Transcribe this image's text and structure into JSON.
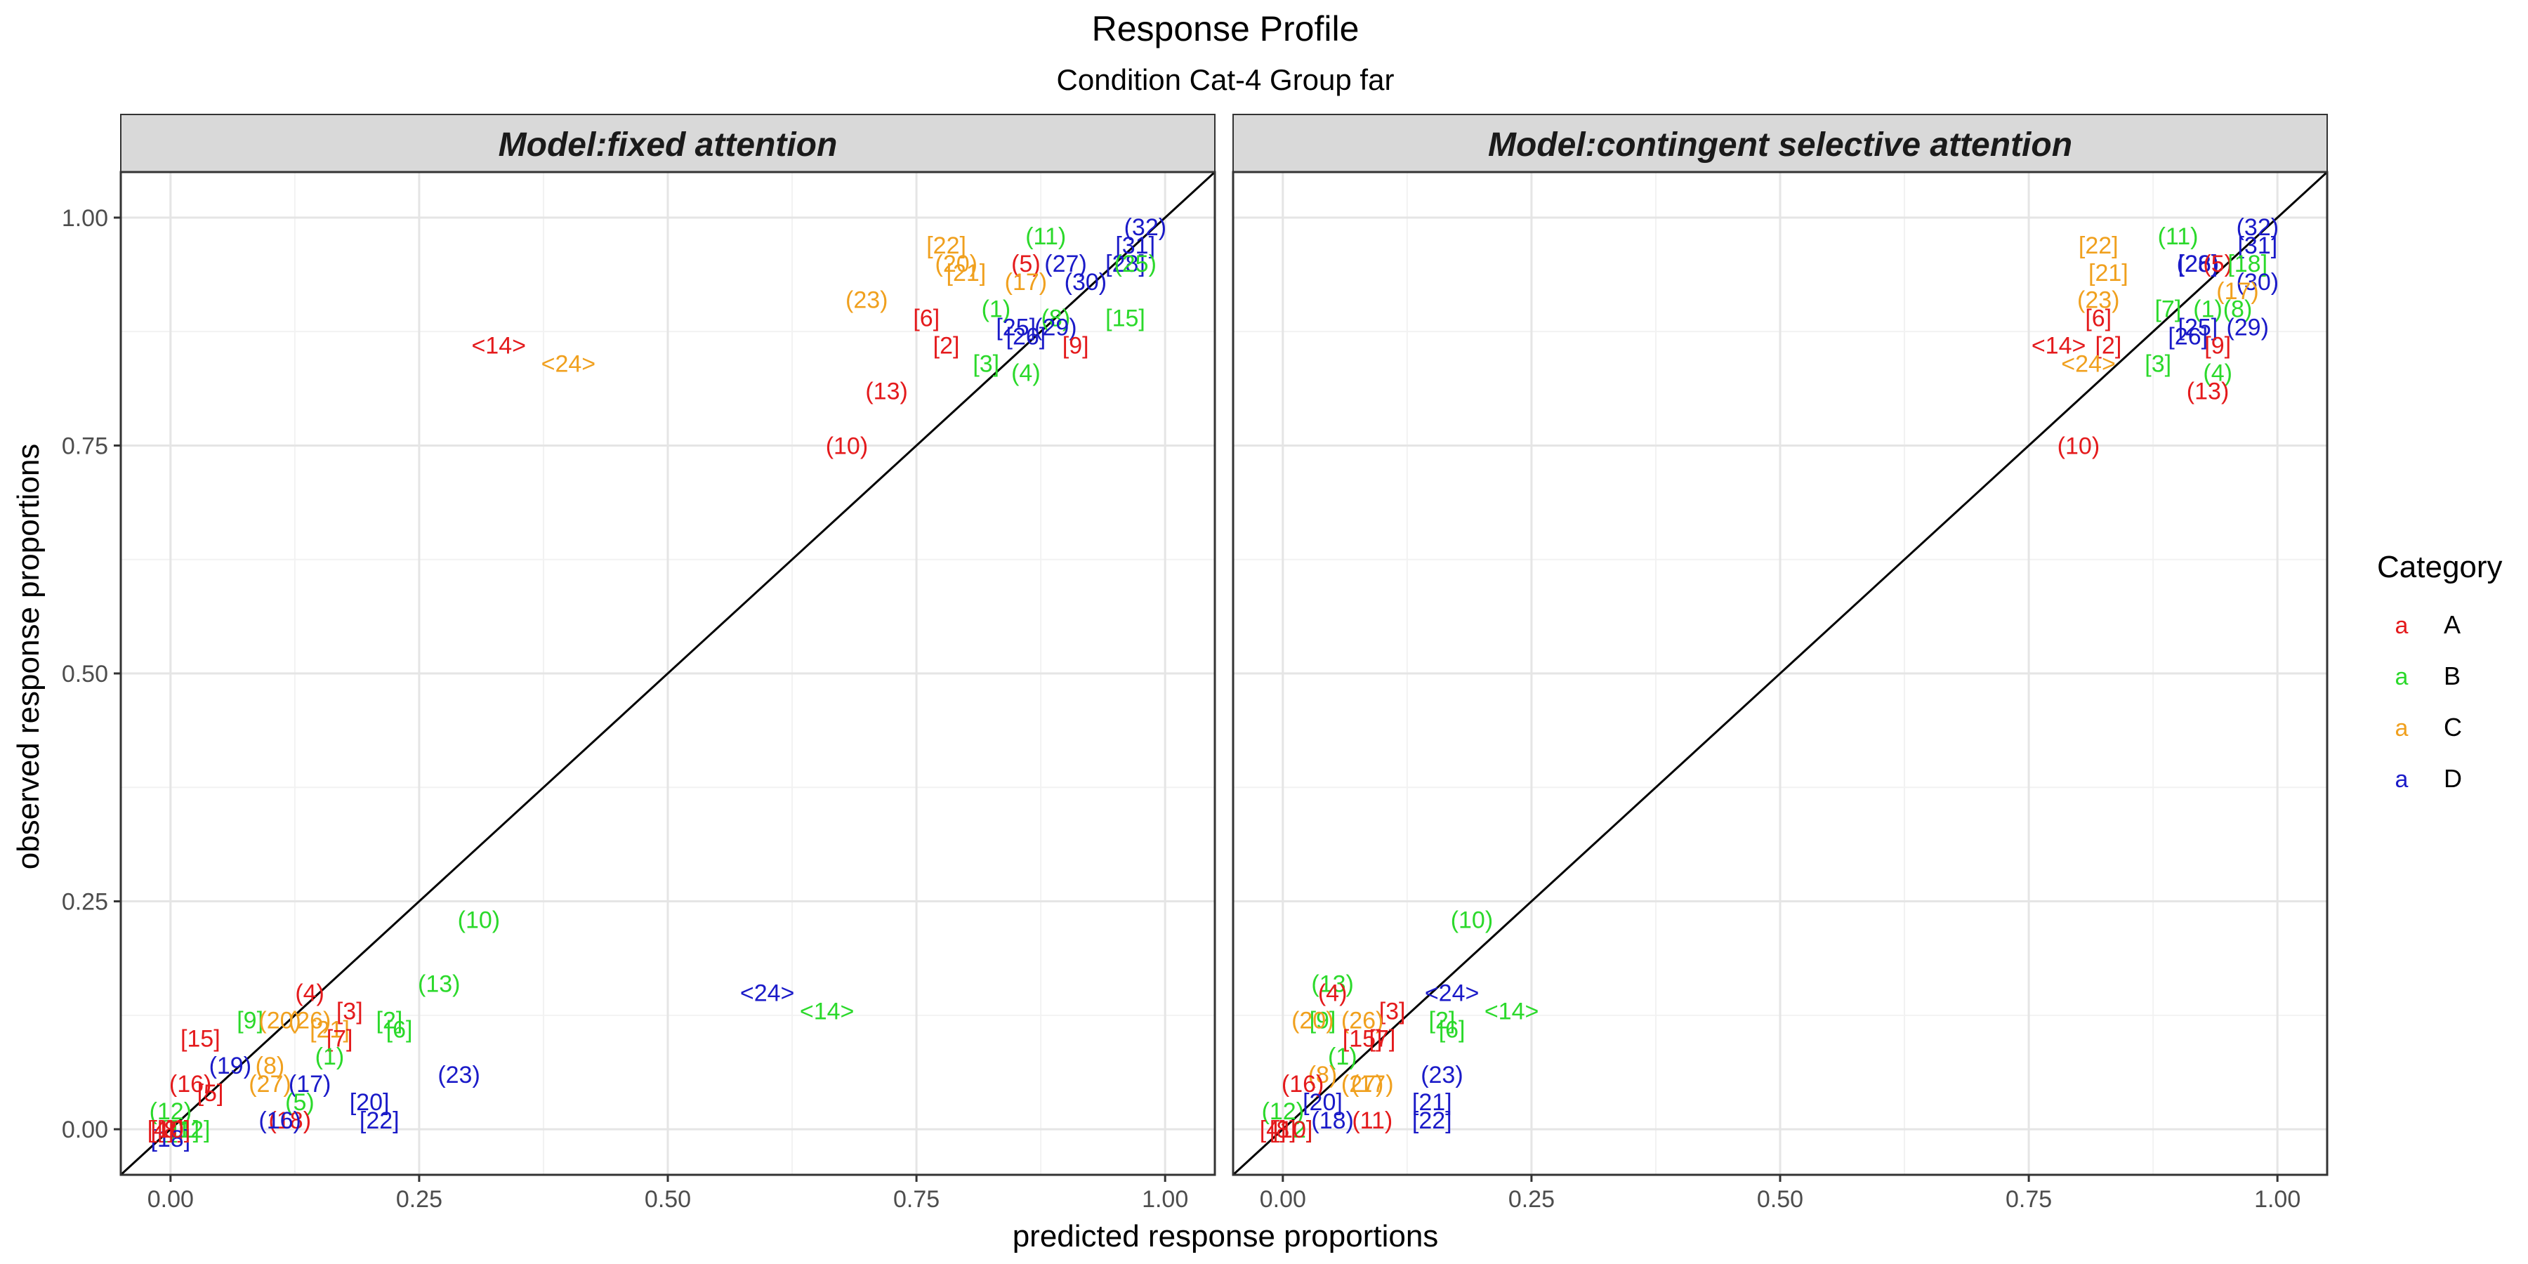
{
  "title": "Response Profile",
  "subtitle": "Condition Cat-4 Group far",
  "xlabel": "predicted response proportions",
  "ylabel": "observed response proportions",
  "legend": {
    "title": "Category",
    "glyph": "a",
    "items": [
      {
        "label": "A",
        "color": "#E41A1C"
      },
      {
        "label": "B",
        "color": "#2BD92B"
      },
      {
        "label": "C",
        "color": "#F0A01E"
      },
      {
        "label": "D",
        "color": "#1A1AC8"
      }
    ]
  },
  "chart_data": {
    "type": "scatter",
    "xlim": [
      -0.05,
      1.05
    ],
    "ylim": [
      -0.05,
      1.05
    ],
    "x_ticks": [
      "0.00",
      "0.25",
      "0.50",
      "0.75",
      "1.00"
    ],
    "y_ticks": [
      "0.00",
      "0.25",
      "0.50",
      "0.75",
      "1.00"
    ],
    "reference_line": "y = x",
    "grid": true,
    "legend_position": "right",
    "panels": [
      {
        "title": "Model:fixed attention",
        "points": [
          {
            "label": "(32)",
            "cat": "D",
            "x": 0.98,
            "y": 0.99
          },
          {
            "label": "(11)",
            "cat": "B",
            "x": 0.88,
            "y": 0.98
          },
          {
            "label": "[31]",
            "cat": "D",
            "x": 0.97,
            "y": 0.97
          },
          {
            "label": "[22]",
            "cat": "C",
            "x": 0.78,
            "y": 0.97
          },
          {
            "label": "(20)",
            "cat": "C",
            "x": 0.79,
            "y": 0.95
          },
          {
            "label": "(5)",
            "cat": "A",
            "x": 0.86,
            "y": 0.95
          },
          {
            "label": "(27)",
            "cat": "D",
            "x": 0.9,
            "y": 0.95
          },
          {
            "label": "[28]",
            "cat": "D",
            "x": 0.96,
            "y": 0.95
          },
          {
            "label": "(25)",
            "cat": "B",
            "x": 0.97,
            "y": 0.95
          },
          {
            "label": "[21]",
            "cat": "C",
            "x": 0.8,
            "y": 0.94
          },
          {
            "label": "(17)",
            "cat": "C",
            "x": 0.86,
            "y": 0.93
          },
          {
            "label": "(30)",
            "cat": "D",
            "x": 0.92,
            "y": 0.93
          },
          {
            "label": "(23)",
            "cat": "C",
            "x": 0.7,
            "y": 0.91
          },
          {
            "label": "(1)",
            "cat": "B",
            "x": 0.83,
            "y": 0.9
          },
          {
            "label": "(8)",
            "cat": "B",
            "x": 0.89,
            "y": 0.89
          },
          {
            "label": "[6]",
            "cat": "A",
            "x": 0.76,
            "y": 0.89
          },
          {
            "label": "[15]",
            "cat": "B",
            "x": 0.96,
            "y": 0.89
          },
          {
            "label": "[25]",
            "cat": "D",
            "x": 0.85,
            "y": 0.88
          },
          {
            "label": "(29)",
            "cat": "D",
            "x": 0.89,
            "y": 0.88
          },
          {
            "label": "[26]",
            "cat": "D",
            "x": 0.86,
            "y": 0.87
          },
          {
            "label": "[2]",
            "cat": "A",
            "x": 0.78,
            "y": 0.86
          },
          {
            "label": "[9]",
            "cat": "A",
            "x": 0.91,
            "y": 0.86
          },
          {
            "label": "<14>",
            "cat": "A",
            "x": 0.33,
            "y": 0.86
          },
          {
            "label": "<24>",
            "cat": "C",
            "x": 0.4,
            "y": 0.84
          },
          {
            "label": "[3]",
            "cat": "B",
            "x": 0.82,
            "y": 0.84
          },
          {
            "label": "(4)",
            "cat": "B",
            "x": 0.86,
            "y": 0.83
          },
          {
            "label": "(13)",
            "cat": "A",
            "x": 0.72,
            "y": 0.81
          },
          {
            "label": "(10)",
            "cat": "A",
            "x": 0.68,
            "y": 0.75
          },
          {
            "label": "(10)",
            "cat": "B",
            "x": 0.31,
            "y": 0.23
          },
          {
            "label": "(13)",
            "cat": "B",
            "x": 0.27,
            "y": 0.16
          },
          {
            "label": "<24>",
            "cat": "D",
            "x": 0.6,
            "y": 0.15
          },
          {
            "label": "(4)",
            "cat": "A",
            "x": 0.14,
            "y": 0.15
          },
          {
            "label": "<14>",
            "cat": "B",
            "x": 0.66,
            "y": 0.13
          },
          {
            "label": "[3]",
            "cat": "A",
            "x": 0.18,
            "y": 0.13
          },
          {
            "label": "[9]",
            "cat": "B",
            "x": 0.08,
            "y": 0.12
          },
          {
            "label": "(20)",
            "cat": "C",
            "x": 0.11,
            "y": 0.12
          },
          {
            "label": "(26)",
            "cat": "C",
            "x": 0.14,
            "y": 0.12
          },
          {
            "label": "[2]",
            "cat": "B",
            "x": 0.22,
            "y": 0.12
          },
          {
            "label": "[21]",
            "cat": "C",
            "x": 0.16,
            "y": 0.11
          },
          {
            "label": "[6]",
            "cat": "B",
            "x": 0.23,
            "y": 0.11
          },
          {
            "label": "[15]",
            "cat": "A",
            "x": 0.03,
            "y": 0.1
          },
          {
            "label": "[7]",
            "cat": "A",
            "x": 0.17,
            "y": 0.1
          },
          {
            "label": "(1)",
            "cat": "B",
            "x": 0.16,
            "y": 0.08
          },
          {
            "label": "(19)",
            "cat": "D",
            "x": 0.06,
            "y": 0.07
          },
          {
            "label": "(8)",
            "cat": "C",
            "x": 0.1,
            "y": 0.07
          },
          {
            "label": "(23)",
            "cat": "D",
            "x": 0.29,
            "y": 0.06
          },
          {
            "label": "(16)",
            "cat": "A",
            "x": 0.02,
            "y": 0.05
          },
          {
            "label": "(27)",
            "cat": "C",
            "x": 0.1,
            "y": 0.05
          },
          {
            "label": "(17)",
            "cat": "D",
            "x": 0.14,
            "y": 0.05
          },
          {
            "label": "[5]",
            "cat": "A",
            "x": 0.04,
            "y": 0.04
          },
          {
            "label": "(5)",
            "cat": "B",
            "x": 0.13,
            "y": 0.03
          },
          {
            "label": "[20]",
            "cat": "D",
            "x": 0.2,
            "y": 0.03
          },
          {
            "label": "(12)",
            "cat": "B",
            "x": 0.0,
            "y": 0.02
          },
          {
            "label": "(18)",
            "cat": "A",
            "x": 0.12,
            "y": 0.01
          },
          {
            "label": "(16)",
            "cat": "D",
            "x": 0.11,
            "y": 0.01
          },
          {
            "label": "[22]",
            "cat": "D",
            "x": 0.21,
            "y": 0.01
          },
          {
            "label": "[11]",
            "cat": "B",
            "x": 0.01,
            "y": 0.0
          },
          {
            "label": "[12]",
            "cat": "B",
            "x": 0.02,
            "y": 0.0
          },
          {
            "label": "[8]",
            "cat": "A",
            "x": 0.0,
            "y": 0.0
          },
          {
            "label": "[18]",
            "cat": "D",
            "x": 0.0,
            "y": -0.01
          },
          {
            "label": "[10]",
            "cat": "A",
            "x": 0.0,
            "y": 0.0
          },
          {
            "label": "[4]",
            "cat": "A",
            "x": -0.01,
            "y": 0.0
          }
        ]
      },
      {
        "title": "Model:contingent selective attention",
        "points": [
          {
            "label": "(32)",
            "cat": "D",
            "x": 0.98,
            "y": 0.99
          },
          {
            "label": "(11)",
            "cat": "B",
            "x": 0.9,
            "y": 0.98
          },
          {
            "label": "[31]",
            "cat": "D",
            "x": 0.98,
            "y": 0.97
          },
          {
            "label": "[22]",
            "cat": "C",
            "x": 0.82,
            "y": 0.97
          },
          {
            "label": "(26)",
            "cat": "D",
            "x": 0.92,
            "y": 0.95
          },
          {
            "label": "[28]",
            "cat": "D",
            "x": 0.92,
            "y": 0.95
          },
          {
            "label": "(5)",
            "cat": "A",
            "x": 0.94,
            "y": 0.95
          },
          {
            "label": "[18]",
            "cat": "B",
            "x": 0.97,
            "y": 0.95
          },
          {
            "label": "(30)",
            "cat": "D",
            "x": 0.98,
            "y": 0.93
          },
          {
            "label": "[21]",
            "cat": "C",
            "x": 0.83,
            "y": 0.94
          },
          {
            "label": "(17)",
            "cat": "C",
            "x": 0.96,
            "y": 0.92
          },
          {
            "label": "(23)",
            "cat": "C",
            "x": 0.82,
            "y": 0.91
          },
          {
            "label": "[7]",
            "cat": "B",
            "x": 0.89,
            "y": 0.9
          },
          {
            "label": "(1)",
            "cat": "B",
            "x": 0.93,
            "y": 0.9
          },
          {
            "label": "(8)",
            "cat": "B",
            "x": 0.96,
            "y": 0.9
          },
          {
            "label": "[6]",
            "cat": "A",
            "x": 0.82,
            "y": 0.89
          },
          {
            "label": "[25]",
            "cat": "D",
            "x": 0.92,
            "y": 0.88
          },
          {
            "label": "(29)",
            "cat": "D",
            "x": 0.97,
            "y": 0.88
          },
          {
            "label": "[26]",
            "cat": "D",
            "x": 0.91,
            "y": 0.87
          },
          {
            "label": "[2]",
            "cat": "A",
            "x": 0.83,
            "y": 0.86
          },
          {
            "label": "[9]",
            "cat": "A",
            "x": 0.94,
            "y": 0.86
          },
          {
            "label": "<14>",
            "cat": "A",
            "x": 0.78,
            "y": 0.86
          },
          {
            "label": "<24>",
            "cat": "C",
            "x": 0.81,
            "y": 0.84
          },
          {
            "label": "[3]",
            "cat": "B",
            "x": 0.88,
            "y": 0.84
          },
          {
            "label": "(4)",
            "cat": "B",
            "x": 0.94,
            "y": 0.83
          },
          {
            "label": "(13)",
            "cat": "A",
            "x": 0.93,
            "y": 0.81
          },
          {
            "label": "(10)",
            "cat": "A",
            "x": 0.8,
            "y": 0.75
          },
          {
            "label": "(10)",
            "cat": "B",
            "x": 0.19,
            "y": 0.23
          },
          {
            "label": "(13)",
            "cat": "B",
            "x": 0.05,
            "y": 0.16
          },
          {
            "label": "<24>",
            "cat": "D",
            "x": 0.17,
            "y": 0.15
          },
          {
            "label": "(4)",
            "cat": "A",
            "x": 0.05,
            "y": 0.15
          },
          {
            "label": "<14>",
            "cat": "B",
            "x": 0.23,
            "y": 0.13
          },
          {
            "label": "[3]",
            "cat": "A",
            "x": 0.11,
            "y": 0.13
          },
          {
            "label": "[9]",
            "cat": "B",
            "x": 0.04,
            "y": 0.12
          },
          {
            "label": "(20)",
            "cat": "C",
            "x": 0.03,
            "y": 0.12
          },
          {
            "label": "(26)",
            "cat": "C",
            "x": 0.08,
            "y": 0.12
          },
          {
            "label": "[2]",
            "cat": "B",
            "x": 0.16,
            "y": 0.12
          },
          {
            "label": "[6]",
            "cat": "B",
            "x": 0.17,
            "y": 0.11
          },
          {
            "label": "[15]",
            "cat": "A",
            "x": 0.08,
            "y": 0.1
          },
          {
            "label": "[7]",
            "cat": "A",
            "x": 0.1,
            "y": 0.1
          },
          {
            "label": "(1)",
            "cat": "B",
            "x": 0.06,
            "y": 0.08
          },
          {
            "label": "(23)",
            "cat": "D",
            "x": 0.16,
            "y": 0.06
          },
          {
            "label": "(8)",
            "cat": "C",
            "x": 0.04,
            "y": 0.06
          },
          {
            "label": "(27)",
            "cat": "C",
            "x": 0.08,
            "y": 0.05
          },
          {
            "label": "(17)",
            "cat": "C",
            "x": 0.09,
            "y": 0.05
          },
          {
            "label": "(16)",
            "cat": "A",
            "x": 0.02,
            "y": 0.05
          },
          {
            "label": "[20]",
            "cat": "D",
            "x": 0.04,
            "y": 0.03
          },
          {
            "label": "[21]",
            "cat": "D",
            "x": 0.15,
            "y": 0.03
          },
          {
            "label": "(12)",
            "cat": "B",
            "x": 0.0,
            "y": 0.02
          },
          {
            "label": "(11)",
            "cat": "A",
            "x": 0.09,
            "y": 0.01
          },
          {
            "label": "(18)",
            "cat": "D",
            "x": 0.05,
            "y": 0.01
          },
          {
            "label": "[22]",
            "cat": "D",
            "x": 0.15,
            "y": 0.01
          },
          {
            "label": "[12]",
            "cat": "B",
            "x": 0.01,
            "y": 0.0
          },
          {
            "label": "[8]",
            "cat": "A",
            "x": 0.0,
            "y": 0.0
          },
          {
            "label": "[4]",
            "cat": "A",
            "x": -0.01,
            "y": 0.0
          },
          {
            "label": "[10]",
            "cat": "A",
            "x": 0.01,
            "y": 0.0
          }
        ]
      }
    ]
  }
}
